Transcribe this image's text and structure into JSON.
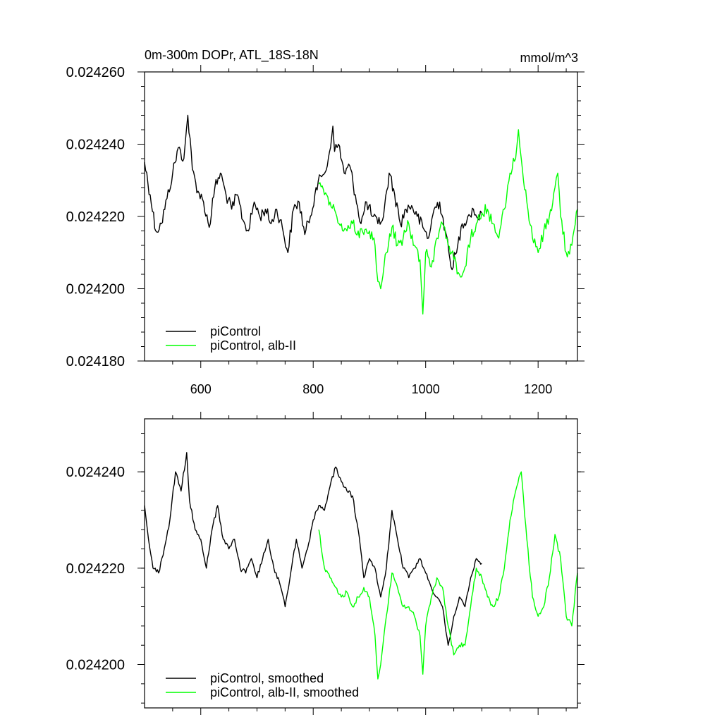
{
  "chart_data": [
    {
      "type": "line",
      "title": "0m-300m DOPr, ATL_18S-18N",
      "units": "mmol/m^3",
      "xlim": [
        500,
        1270
      ],
      "ylim": [
        0.02418,
        0.02426
      ],
      "yticks": [
        0.02418,
        0.0242,
        0.02422,
        0.02424,
        0.02426
      ],
      "yticklabels": [
        "0.024180",
        "0.024200",
        "0.024220",
        "0.024240",
        "0.024260"
      ],
      "xticks": [
        600,
        800,
        1000,
        1200
      ],
      "xticklabels": [
        "600",
        "800",
        "1000",
        "1200"
      ],
      "legend_position": "lower-left",
      "series": [
        {
          "name": "piControl",
          "color": "#000000",
          "x": [
            500,
            510,
            520,
            530,
            540,
            550,
            560,
            570,
            577,
            585,
            595,
            605,
            615,
            625,
            635,
            645,
            655,
            665,
            675,
            685,
            695,
            705,
            715,
            725,
            735,
            745,
            755,
            765,
            775,
            785,
            795,
            805,
            815,
            825,
            835,
            838,
            845,
            855,
            865,
            875,
            885,
            895,
            905,
            915,
            925,
            935,
            945,
            955,
            965,
            975,
            985,
            995,
            1005,
            1015,
            1025,
            1035,
            1045,
            1055,
            1065,
            1075,
            1085,
            1095,
            1100
          ],
          "y": [
            0.024235,
            0.024226,
            0.024216,
            0.024218,
            0.024225,
            0.024232,
            0.024239,
            0.024236,
            0.024248,
            0.024233,
            0.024227,
            0.024224,
            0.024217,
            0.024228,
            0.024232,
            0.024226,
            0.024222,
            0.024226,
            0.024219,
            0.024216,
            0.024224,
            0.02422,
            0.024222,
            0.024218,
            0.024222,
            0.024217,
            0.02421,
            0.024222,
            0.024224,
            0.024215,
            0.02422,
            0.024228,
            0.024231,
            0.024234,
            0.024245,
            0.024238,
            0.02424,
            0.024232,
            0.024234,
            0.024226,
            0.024218,
            0.024224,
            0.02422,
            0.024218,
            0.02422,
            0.024232,
            0.024226,
            0.024218,
            0.024222,
            0.024223,
            0.02422,
            0.024217,
            0.024214,
            0.024222,
            0.024224,
            0.024216,
            0.024206,
            0.02421,
            0.024218,
            0.02422,
            0.024222,
            0.024219,
            0.024221
          ]
        },
        {
          "name": "piControl, alb-II",
          "color": "#00ff00",
          "x": [
            810,
            820,
            830,
            840,
            850,
            860,
            870,
            880,
            890,
            900,
            910,
            915,
            920,
            930,
            940,
            950,
            960,
            970,
            980,
            990,
            995,
            1000,
            1010,
            1020,
            1030,
            1040,
            1050,
            1060,
            1070,
            1080,
            1090,
            1100,
            1110,
            1120,
            1130,
            1140,
            1150,
            1160,
            1165,
            1170,
            1180,
            1190,
            1200,
            1210,
            1220,
            1230,
            1235,
            1240,
            1250,
            1260,
            1270
          ],
          "y": [
            0.024229,
            0.024226,
            0.024224,
            0.024221,
            0.024218,
            0.024216,
            0.024218,
            0.024216,
            0.024215,
            0.024216,
            0.024212,
            0.024202,
            0.0242,
            0.02421,
            0.024217,
            0.024212,
            0.024214,
            0.024218,
            0.024212,
            0.024208,
            0.024193,
            0.02421,
            0.024206,
            0.024214,
            0.024218,
            0.024212,
            0.024208,
            0.024204,
            0.024206,
            0.024214,
            0.024218,
            0.024221,
            0.024222,
            0.024218,
            0.024214,
            0.024222,
            0.024232,
            0.024236,
            0.024244,
            0.024236,
            0.024224,
            0.024214,
            0.02421,
            0.024216,
            0.02422,
            0.024228,
            0.024232,
            0.02422,
            0.02421,
            0.024212,
            0.024222
          ]
        }
      ]
    },
    {
      "type": "line",
      "title": "",
      "xlim": [
        500,
        1270
      ],
      "ylim": [
        0.024191,
        0.024251
      ],
      "yticks": [
        0.0242,
        0.02422,
        0.02424
      ],
      "yticklabels": [
        "0.024200",
        "0.024220",
        "0.024240"
      ],
      "xticks": [
        600,
        800,
        1000,
        1200
      ],
      "legend_position": "lower-left",
      "series": [
        {
          "name": "piControl, smoothed",
          "color": "#000000",
          "x": [
            500,
            505,
            515,
            525,
            535,
            545,
            555,
            565,
            575,
            580,
            590,
            600,
            610,
            620,
            630,
            640,
            650,
            660,
            670,
            680,
            690,
            700,
            710,
            720,
            730,
            740,
            750,
            760,
            770,
            780,
            790,
            800,
            810,
            820,
            830,
            840,
            850,
            860,
            870,
            880,
            890,
            900,
            910,
            920,
            930,
            940,
            950,
            960,
            970,
            980,
            990,
            1000,
            1010,
            1020,
            1030,
            1040,
            1050,
            1060,
            1070,
            1080,
            1090,
            1100
          ],
          "y": [
            0.024233,
            0.024228,
            0.02422,
            0.024219,
            0.024224,
            0.02423,
            0.02424,
            0.024236,
            0.024244,
            0.024234,
            0.024228,
            0.024226,
            0.02422,
            0.024228,
            0.024233,
            0.024226,
            0.024224,
            0.024226,
            0.02422,
            0.024219,
            0.024222,
            0.024218,
            0.024222,
            0.024226,
            0.02422,
            0.024217,
            0.024212,
            0.024219,
            0.024226,
            0.02422,
            0.024224,
            0.02423,
            0.024233,
            0.024232,
            0.024237,
            0.024241,
            0.024238,
            0.024236,
            0.024235,
            0.024228,
            0.024218,
            0.024222,
            0.02422,
            0.024214,
            0.02422,
            0.024232,
            0.024226,
            0.02422,
            0.024218,
            0.02422,
            0.024222,
            0.024219,
            0.024216,
            0.024214,
            0.024212,
            0.024204,
            0.02421,
            0.024214,
            0.024212,
            0.024218,
            0.024222,
            0.024221
          ]
        },
        {
          "name": "piControl, alb-II, smoothed",
          "color": "#00ff00",
          "x": [
            810,
            820,
            830,
            840,
            850,
            860,
            870,
            880,
            890,
            900,
            910,
            915,
            920,
            930,
            940,
            950,
            960,
            970,
            980,
            990,
            995,
            1000,
            1010,
            1020,
            1030,
            1040,
            1050,
            1060,
            1070,
            1080,
            1090,
            1100,
            1110,
            1120,
            1130,
            1140,
            1150,
            1160,
            1170,
            1180,
            1190,
            1200,
            1210,
            1220,
            1230,
            1240,
            1250,
            1260,
            1270
          ],
          "y": [
            0.024228,
            0.02422,
            0.024218,
            0.024216,
            0.024214,
            0.024215,
            0.024212,
            0.024214,
            0.024216,
            0.024214,
            0.024206,
            0.024197,
            0.0242,
            0.02421,
            0.024219,
            0.024216,
            0.024212,
            0.024212,
            0.02421,
            0.024206,
            0.024198,
            0.024208,
            0.024214,
            0.024218,
            0.024216,
            0.024208,
            0.024202,
            0.024204,
            0.024204,
            0.024212,
            0.02422,
            0.024218,
            0.024214,
            0.024212,
            0.024214,
            0.02422,
            0.02423,
            0.024236,
            0.02424,
            0.024226,
            0.024214,
            0.02421,
            0.024212,
            0.024218,
            0.024227,
            0.024222,
            0.02421,
            0.024208,
            0.024219
          ]
        }
      ]
    }
  ]
}
